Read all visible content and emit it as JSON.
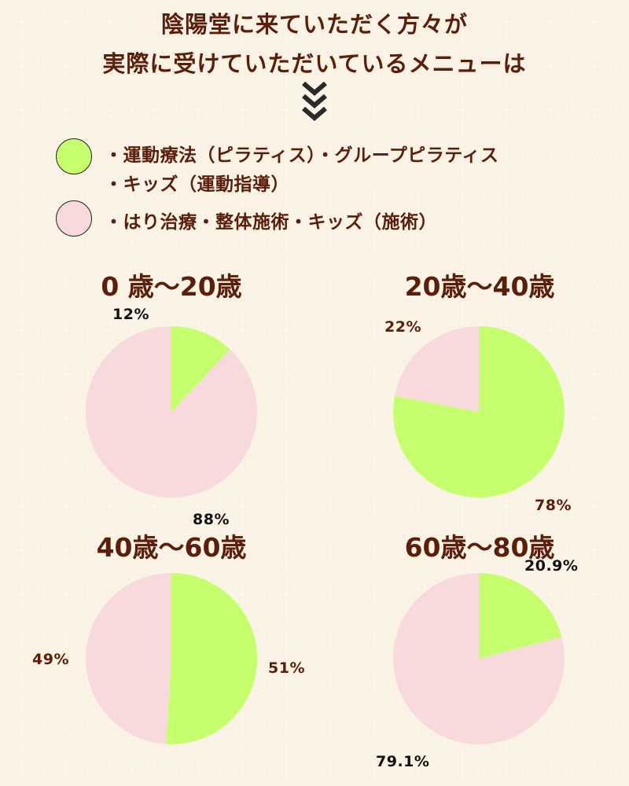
{
  "header": {
    "title_line1": "陰陽堂に来ていただく方々が",
    "title_line2": "実際に受けていただいているメニューは",
    "arrow_icon": "triple-chevron-down-icon"
  },
  "legend": {
    "items": [
      {
        "color": "#c6ff6e",
        "lines": [
          "・運動療法（ピラティス）・グループピラティス",
          "・キッズ（運動指導）"
        ]
      },
      {
        "color": "#f8dadd",
        "lines": [
          "・はり治療・整体施術・キッズ（施術）"
        ]
      }
    ]
  },
  "colors": {
    "green": "#c6ff6e",
    "pink": "#f8dadd",
    "text_brown": "#5a1e0a",
    "text_black": "#111111"
  },
  "chart_data": [
    {
      "type": "pie",
      "title": "0 歳〜20歳",
      "slices": [
        {
          "label": "12%",
          "value": 12,
          "color": "#c6ff6e"
        },
        {
          "label": "88%",
          "value": 88,
          "color": "#f8dadd"
        }
      ]
    },
    {
      "type": "pie",
      "title": "20歳〜40歳",
      "slices": [
        {
          "label": "78%",
          "value": 78,
          "color": "#c6ff6e"
        },
        {
          "label": "22%",
          "value": 22,
          "color": "#f8dadd"
        }
      ]
    },
    {
      "type": "pie",
      "title": "40歳〜60歳",
      "slices": [
        {
          "label": "51%",
          "value": 51,
          "color": "#c6ff6e"
        },
        {
          "label": "49%",
          "value": 49,
          "color": "#f8dadd"
        }
      ]
    },
    {
      "type": "pie",
      "title": "60歳〜80歳",
      "slices": [
        {
          "label": "20.9%",
          "value": 20.9,
          "color": "#c6ff6e"
        },
        {
          "label": "79.1%",
          "value": 79.1,
          "color": "#f8dadd"
        }
      ]
    }
  ]
}
